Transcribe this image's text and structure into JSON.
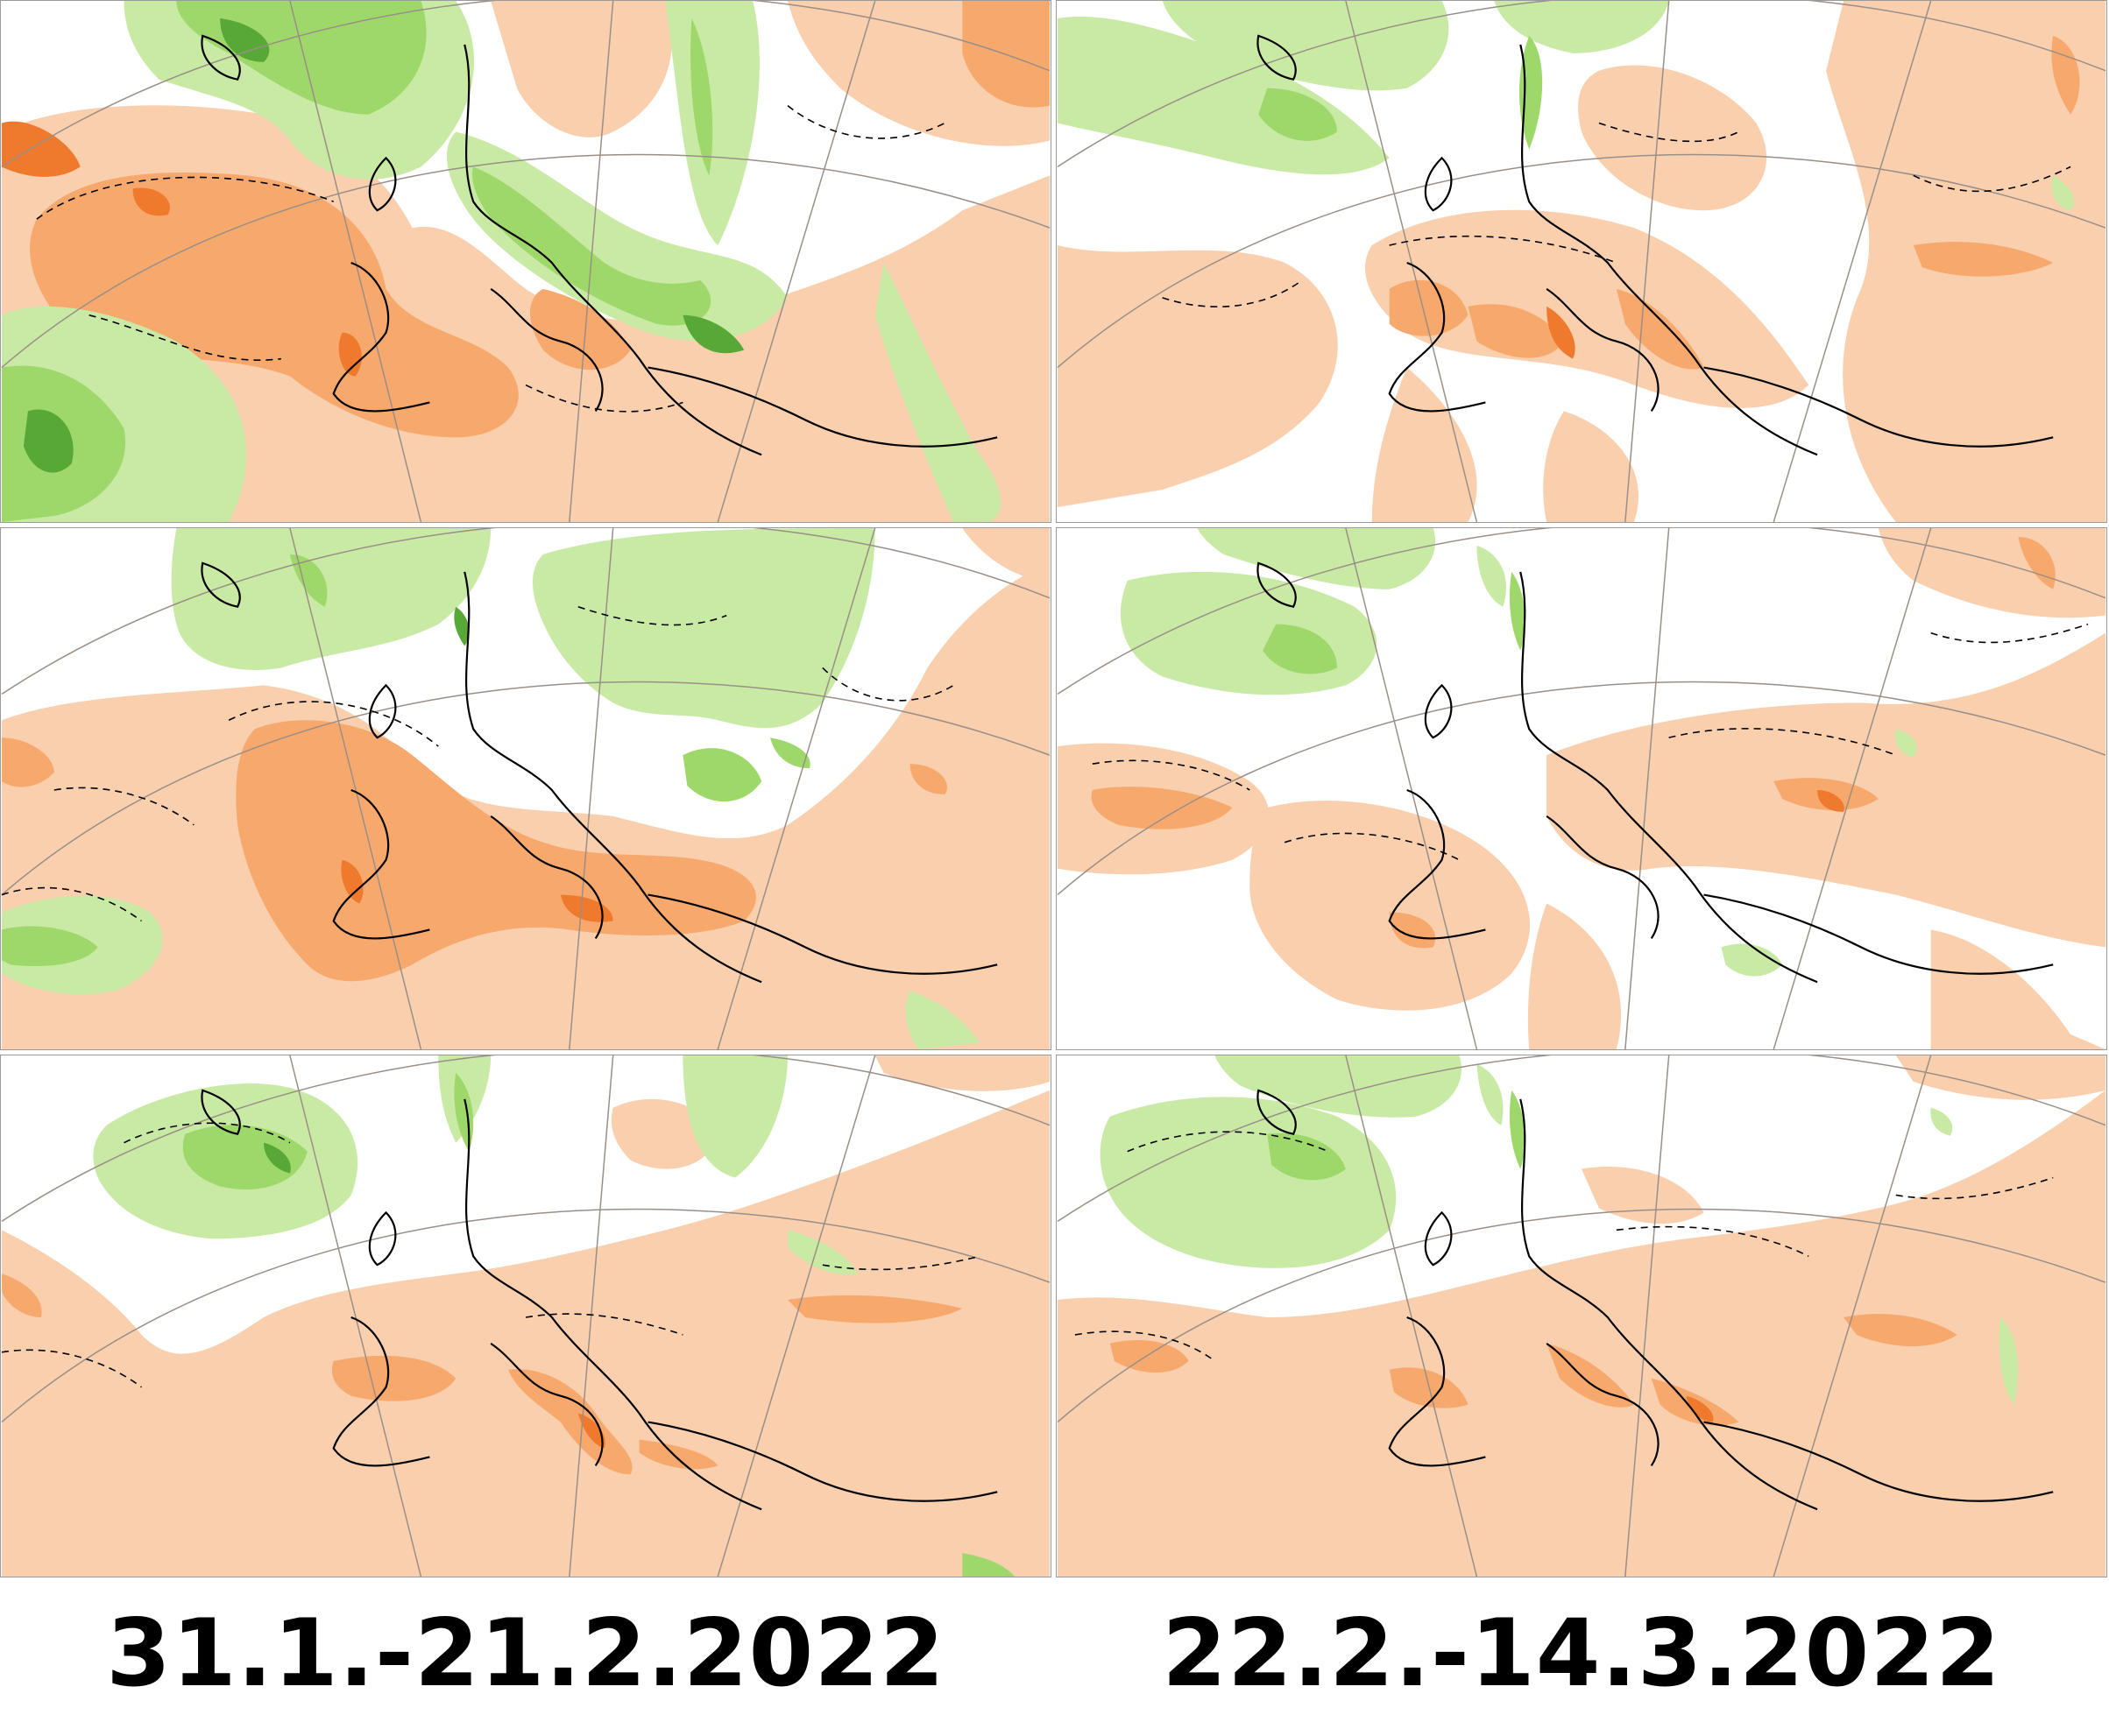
{
  "colors": {
    "positive_light": "#f9cfae",
    "positive_mid": "#f7a86d",
    "positive_dark": "#ef7a2e",
    "negative_light": "#c9eaa5",
    "negative_mid": "#9ed86a",
    "negative_dark": "#58a838",
    "coastline": "#000000",
    "graticule": "#9a8f86",
    "contour_dashed": "#000000"
  },
  "periods": [
    {
      "label": "31.1.-21.2.2022"
    },
    {
      "label": "22.2.-14.3.2022"
    }
  ],
  "panels": [
    {
      "column": 0,
      "row": 0,
      "period": "31.1.-21.2.2022",
      "dominant_anomaly": "positive",
      "green_extent": "large"
    },
    {
      "column": 0,
      "row": 1,
      "period": "31.1.-21.2.2022",
      "dominant_anomaly": "positive",
      "green_extent": "medium"
    },
    {
      "column": 0,
      "row": 2,
      "period": "31.1.-21.2.2022",
      "dominant_anomaly": "positive",
      "green_extent": "small"
    },
    {
      "column": 1,
      "row": 0,
      "period": "22.2.-14.3.2022",
      "dominant_anomaly": "positive",
      "green_extent": "small"
    },
    {
      "column": 1,
      "row": 1,
      "period": "22.2.-14.3.2022",
      "dominant_anomaly": "positive",
      "green_extent": "small"
    },
    {
      "column": 1,
      "row": 2,
      "period": "22.2.-14.3.2022",
      "dominant_anomaly": "positive",
      "green_extent": "small"
    }
  ]
}
